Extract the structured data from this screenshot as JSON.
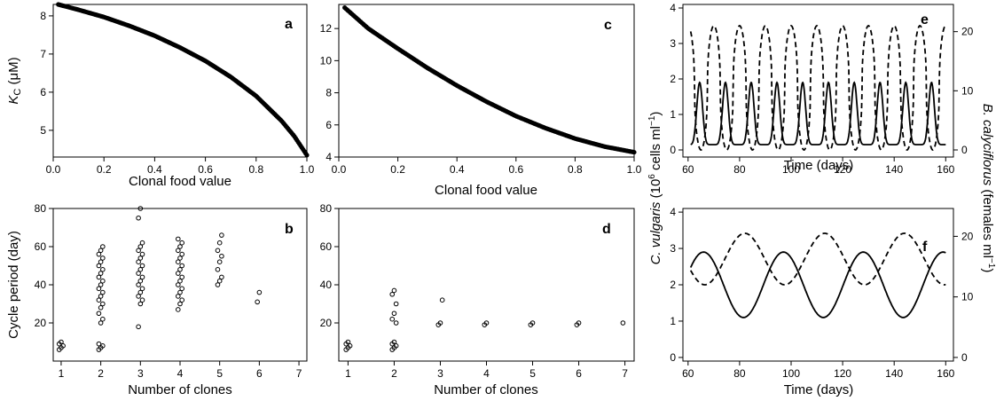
{
  "chart_data": [
    {
      "panel": "a",
      "type": "scatter",
      "xlabel": "Clonal food value",
      "ylabel_main": "K",
      "ylabel_sub": "C",
      "ylabel_unit": " (μM)",
      "xlim": [
        0,
        1
      ],
      "ylim": [
        4.3,
        8.3
      ],
      "xticks": [
        "0.0",
        "0.2",
        "0.4",
        "0.6",
        "0.8",
        "1.0"
      ],
      "yticks": [
        "5",
        "6",
        "7",
        "8"
      ],
      "curve": {
        "x": [
          0.02,
          0.1,
          0.2,
          0.3,
          0.4,
          0.5,
          0.6,
          0.7,
          0.8,
          0.9,
          0.95,
          1.0
        ],
        "y": [
          8.3,
          8.16,
          7.97,
          7.74,
          7.48,
          7.17,
          6.82,
          6.4,
          5.9,
          5.25,
          4.85,
          4.35
        ]
      }
    },
    {
      "panel": "b",
      "type": "scatter",
      "xlabel": "Number of clones",
      "ylabel": "Cycle period (day)",
      "xlim": [
        0.8,
        7.2
      ],
      "ylim": [
        0,
        80
      ],
      "xticks": [
        "1",
        "2",
        "3",
        "4",
        "5",
        "6",
        "7"
      ],
      "yticks": [
        "20",
        "40",
        "60",
        "80"
      ],
      "points": [
        {
          "x": 1,
          "y": [
            6,
            7,
            8,
            9,
            10
          ]
        },
        {
          "x": 2,
          "y": [
            6,
            7,
            8,
            9,
            20,
            22,
            25,
            28,
            30,
            32,
            34,
            36,
            38,
            40,
            42,
            44,
            46,
            48,
            50,
            52,
            54,
            56,
            58,
            60
          ]
        },
        {
          "x": 3,
          "y": [
            18,
            30,
            32,
            34,
            36,
            38,
            40,
            42,
            44,
            46,
            48,
            50,
            52,
            54,
            56,
            58,
            60,
            62,
            75,
            80
          ]
        },
        {
          "x": 4,
          "y": [
            27,
            30,
            32,
            34,
            36,
            38,
            40,
            42,
            44,
            46,
            48,
            50,
            52,
            54,
            56,
            58,
            60,
            62,
            64
          ]
        },
        {
          "x": 5,
          "y": [
            40,
            42,
            44,
            48,
            52,
            55,
            58,
            62,
            66
          ]
        },
        {
          "x": 6,
          "y": [
            31,
            36
          ]
        }
      ]
    },
    {
      "panel": "c",
      "type": "scatter",
      "xlabel": "Clonal food value",
      "xlim": [
        0,
        1
      ],
      "ylim": [
        4,
        13.5
      ],
      "xticks": [
        "0.0",
        "0.2",
        "0.4",
        "0.6",
        "0.8",
        "1.0"
      ],
      "yticks": [
        "4",
        "6",
        "8",
        "10",
        "12"
      ],
      "curve": {
        "x": [
          0.02,
          0.1,
          0.2,
          0.3,
          0.4,
          0.5,
          0.6,
          0.7,
          0.8,
          0.9,
          1.0
        ],
        "y": [
          13.3,
          12.0,
          10.75,
          9.55,
          8.45,
          7.45,
          6.55,
          5.8,
          5.15,
          4.65,
          4.3
        ]
      }
    },
    {
      "panel": "d",
      "type": "scatter",
      "xlabel": "Number of clones",
      "xlim": [
        0.8,
        7.2
      ],
      "ylim": [
        0,
        80
      ],
      "xticks": [
        "1",
        "2",
        "3",
        "4",
        "5",
        "6",
        "7"
      ],
      "yticks": [
        "20",
        "40",
        "60",
        "80"
      ],
      "points": [
        {
          "x": 1,
          "y": [
            6,
            7,
            8,
            9,
            10
          ]
        },
        {
          "x": 2,
          "y": [
            6,
            7,
            8,
            9,
            10,
            20,
            22,
            25,
            30,
            35,
            37
          ]
        },
        {
          "x": 3,
          "y": [
            19,
            20,
            32
          ]
        },
        {
          "x": 4,
          "y": [
            19,
            20
          ]
        },
        {
          "x": 5,
          "y": [
            19,
            20
          ]
        },
        {
          "x": 6,
          "y": [
            19,
            20
          ]
        },
        {
          "x": 7,
          "y": [
            20
          ]
        }
      ]
    },
    {
      "panel": "e",
      "type": "line",
      "xlabel": "Time (days)",
      "xlim": [
        58,
        163
      ],
      "ylim_left": [
        -0.2,
        4.1
      ],
      "ylim_right": [
        -1.2,
        24.6
      ],
      "xticks": [
        "60",
        "80",
        "100",
        "120",
        "140",
        "160"
      ],
      "yticks_left": [
        "0",
        "1",
        "2",
        "3",
        "4"
      ],
      "yticks_right": [
        "0",
        "10",
        "20"
      ],
      "series": [
        {
          "style": "solid",
          "axis": "left",
          "period": 10,
          "peak_offset": 4.5,
          "min": 0.15,
          "max": 1.9
        },
        {
          "style": "dashed",
          "axis": "right",
          "period": 10,
          "peak_offset": 0,
          "min": 0,
          "max": 21
        }
      ]
    },
    {
      "panel": "f",
      "type": "line",
      "xlabel": "Time (days)",
      "xlim": [
        58,
        163
      ],
      "ylim_left": [
        -0.1,
        4.1
      ],
      "ylim_right": [
        -0.6,
        24.6
      ],
      "xticks": [
        "60",
        "80",
        "100",
        "120",
        "140",
        "160"
      ],
      "yticks_left": [
        "0",
        "1",
        "2",
        "3",
        "4"
      ],
      "yticks_right": [
        "0",
        "10",
        "20"
      ],
      "series": [
        {
          "style": "solid",
          "axis": "left",
          "period": 31,
          "peak_offset": 66,
          "min": 1.1,
          "max": 2.9
        },
        {
          "style": "dashed",
          "axis": "right",
          "period": 31,
          "peak_offset": 82,
          "min": 12,
          "max": 20.5
        }
      ]
    }
  ],
  "shared_labels": {
    "left_y": "C. vulgaris",
    "left_y_unit": " (10",
    "left_y_exp": "6",
    "left_y_unit2": " cells ml",
    "left_y_unit2_exp": "−1",
    "left_y_close": ")",
    "right_y": "B. calyciflorus",
    "right_y_unit": " (females ml",
    "right_y_unit_exp": "−1",
    "right_y_close": ")"
  }
}
